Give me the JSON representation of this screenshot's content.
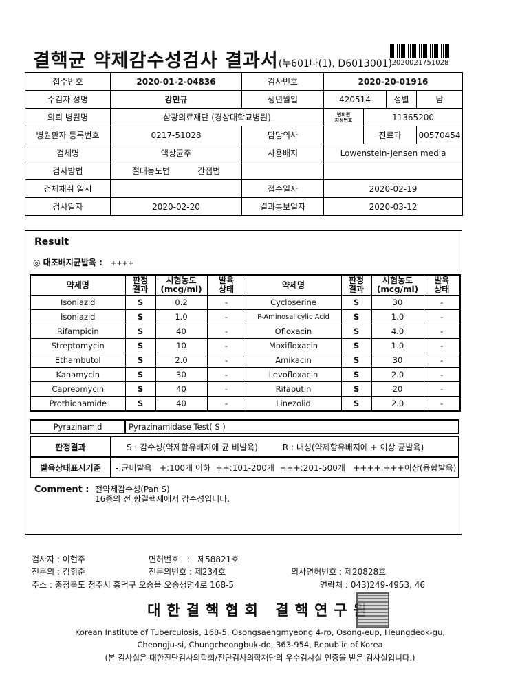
{
  "header": {
    "title": "결핵균 약제감수성검사 결과서",
    "form_code": "(누601나(1), D6013001)",
    "barcode_number": "2020021751028"
  },
  "info": {
    "receipt_no_label": "접수번호",
    "receipt_no": "2020-01-2-04836",
    "test_no_label": "검사번호",
    "test_no": "2020-20-01916",
    "patient_name_label": "수검자 성명",
    "patient_name": "강민규",
    "birth_label": "생년월일",
    "birth": "420514",
    "sex_label": "성별",
    "sex": "남",
    "hospital_label": "의뢰 병원명",
    "hospital": "삼광의료재단 (경상대학교병원)",
    "hospital_code_label_1": "병의원",
    "hospital_code_label_2": "지정번호",
    "hospital_code": "11365200",
    "patient_reg_label": "병원환자 등록번호",
    "patient_reg": "0217-51028",
    "doctor_label": "담당의사",
    "doctor": "",
    "dept_label": "진료과",
    "dept": "00570454",
    "specimen_label": "검체명",
    "specimen": "액상균주",
    "medium_label": "사용배지",
    "medium": "Lowenstein-Jensen media",
    "method_label": "검사방법",
    "method_1": "절대농도법",
    "method_2": "간접법",
    "collect_label": "검체채취 일시",
    "collect": "",
    "received_label": "접수일자",
    "received": "2020-02-19",
    "test_date_label": "검사일자",
    "test_date": "2020-02-20",
    "report_date_label": "결과통보일자",
    "report_date": "2020-03-12"
  },
  "result": {
    "label": "Result",
    "control_growth_label": "◎ 대조배지균발육 :",
    "control_growth": "++++",
    "headers": [
      "약제명",
      "판정\n결과",
      "시험농도\n(mcg/ml)",
      "발육\n상태",
      "약제명",
      "판정\n결과",
      "시험농도\n(mcg/ml)",
      "발육\n상태"
    ],
    "rows": [
      [
        "Isoniazid",
        "S",
        "0.2",
        "-",
        "Cycloserine",
        "S",
        "30",
        "-"
      ],
      [
        "Isoniazid",
        "S",
        "1.0",
        "-",
        "P-Aminosalicylic Acid",
        "S",
        "1.0",
        "-"
      ],
      [
        "Rifampicin",
        "S",
        "40",
        "-",
        "Ofloxacin",
        "S",
        "4.0",
        "-"
      ],
      [
        "Streptomycin",
        "S",
        "10",
        "-",
        "Moxifloxacin",
        "S",
        "1.0",
        "-"
      ],
      [
        "Ethambutol",
        "S",
        "2.0",
        "-",
        "Amikacin",
        "S",
        "30",
        "-"
      ],
      [
        "Kanamycin",
        "S",
        "30",
        "-",
        "Levofloxacin",
        "S",
        "2.0",
        "-"
      ],
      [
        "Capreomycin",
        "S",
        "40",
        "-",
        "Rifabutin",
        "S",
        "20",
        "-"
      ],
      [
        "Prothionamide",
        "S",
        "40",
        "-",
        "Linezolid",
        "S",
        "2.0",
        "-"
      ]
    ],
    "pza_label": "Pyrazinamid",
    "pza_value": "Pyrazinamidase Test( S  )",
    "criteria_label": "판정결과",
    "criteria_s": "S : 감수성(약제함유배지에 균 비발육)",
    "criteria_r": "R : 내성(약제함유배지에 + 이상 균발육)",
    "growth_label": "발육상태표시기준",
    "growth_scale": "-:균비발육   +:100개 이하  ++:101-200개  +++:201-500개   ++++:+++이상(융합발육)",
    "comment_label": "Comment :",
    "comment_1": "전약제감수성(Pan S)",
    "comment_2": "16종의 전 항결핵제에서 감수성입니다."
  },
  "footer": {
    "tester": "검사자 :  이현주",
    "license": "면허번호   :   제58821호",
    "specialist": "전문의 :  김휘준",
    "specialist_no": "전문의번호 :  제234호",
    "doctor_license": "의사면허번호 :  제20828호",
    "address": "주소 : 충청북도 청주시 흥덕구 오송읍 오송생명4로 168-5",
    "contact": "연락처 :  043)249-4953, 46",
    "org": "대한결핵협회  결핵연구원",
    "eng_1": "Korean Institute of Tuberculosis, 168-5, Osongsaengmyeong 4-ro, Osong-eup, Heungdeok-gu,",
    "eng_2": "Cheongju-si, Chungcheongbuk-do, 363-954, Republic of Korea",
    "cert": "(본 검사실은 대한진단검사의학회/진단검사의학재단의 우수검사실 인증을 받은 검사실입니다.)",
    "stamp_icon": "seal-stamp"
  }
}
